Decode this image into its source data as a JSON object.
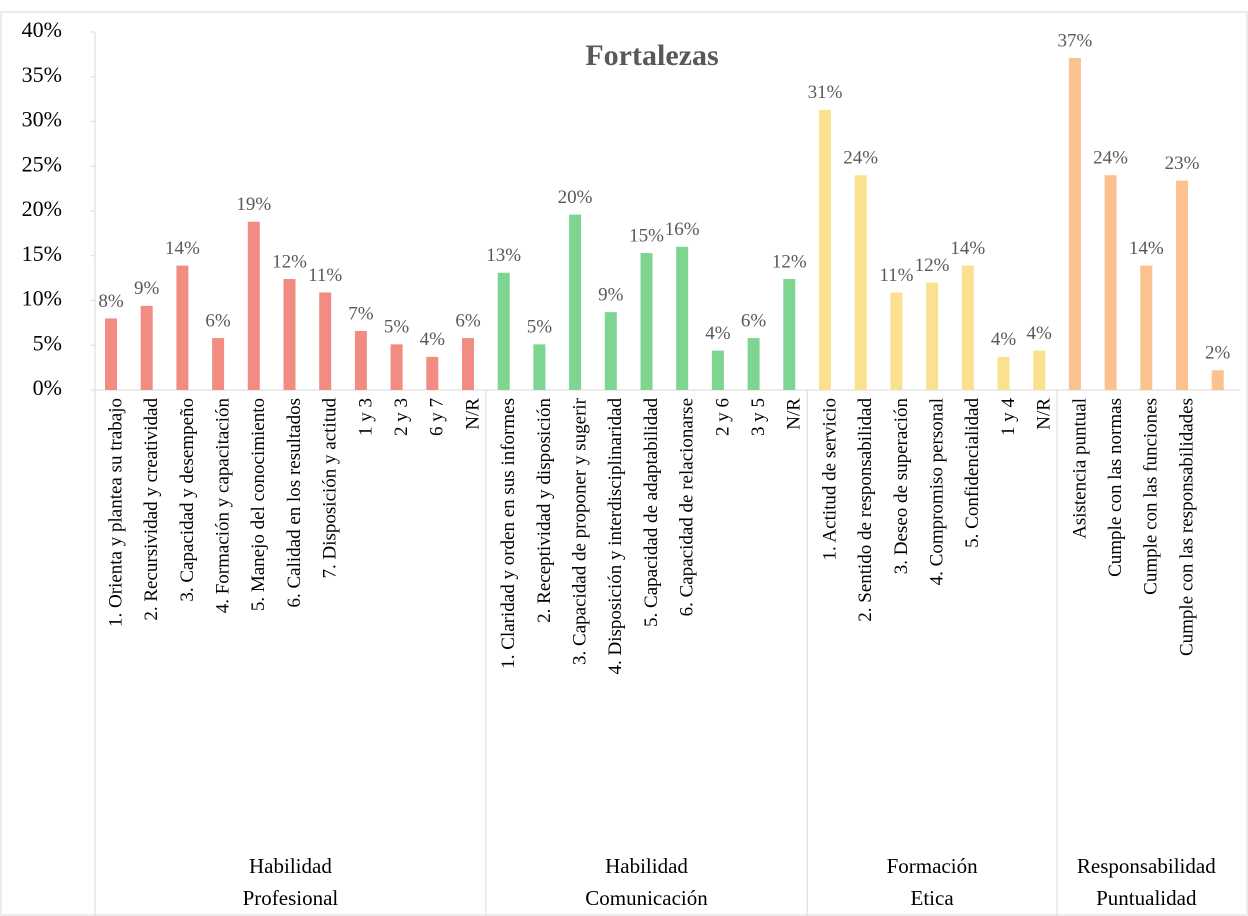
{
  "chart_data": {
    "type": "bar",
    "title": "Fortalezas",
    "ylim": [
      0,
      40
    ],
    "yticks": [
      {
        "value": 0,
        "label": "0%"
      },
      {
        "value": 5,
        "label": "5%"
      },
      {
        "value": 10,
        "label": "10%"
      },
      {
        "value": 15,
        "label": "15%"
      },
      {
        "value": 20,
        "label": "20%"
      },
      {
        "value": 25,
        "label": "25%"
      },
      {
        "value": 30,
        "label": "30%"
      },
      {
        "value": 35,
        "label": "35%"
      },
      {
        "value": 40,
        "label": "40%"
      }
    ],
    "groups": [
      {
        "label_lines": [
          "Habilidad",
          "Profesional"
        ],
        "color": "#f28b82",
        "categories": [
          "1. Orienta y plantea su trabajo",
          "2. Recursividad y creatividad",
          "3. Capacidad y desempeño",
          "4. Formación y capacitación",
          "5. Manejo del conocimiento",
          "6. Calidad en los resultados",
          "7. Disposición y actitud",
          "1 y 3",
          "2 y 3",
          "6 y 7",
          "N/R"
        ],
        "values": [
          8.0,
          9.4,
          13.9,
          5.8,
          18.8,
          12.4,
          10.9,
          6.6,
          5.1,
          3.7,
          5.8
        ],
        "value_labels": [
          "8%",
          "9%",
          "14%",
          "6%",
          "19%",
          "12%",
          "11%",
          "7%",
          "5%",
          "4%",
          "6%"
        ]
      },
      {
        "label_lines": [
          "Habilidad",
          "Comunicación"
        ],
        "color": "#7ed491",
        "categories": [
          "1. Claridad y orden en sus informes",
          "2. Receptividad y disposición",
          "3. Capacidad de proponer y sugerir",
          "4. Disposición y interdisciplinaridad",
          "5. Capacidad de adaptabilidad",
          "6. Capacidad de relacionarse",
          "2 y 6",
          "3 y 5",
          "N/R"
        ],
        "values": [
          13.1,
          5.1,
          19.6,
          8.7,
          15.3,
          16.0,
          4.4,
          5.8,
          12.4
        ],
        "value_labels": [
          "13%",
          "5%",
          "20%",
          "9%",
          "15%",
          "16%",
          "4%",
          "6%",
          "12%"
        ]
      },
      {
        "label_lines": [
          "Formación",
          "Etica"
        ],
        "color": "#fbe18f",
        "categories": [
          "1. Actitud de servicio",
          "2. Sentido de responsabilidad",
          "3. Deseo de superación",
          "4. Compromiso personal",
          "5. Confidencialidad",
          "1 y 4",
          "N/R"
        ],
        "values": [
          31.3,
          24.0,
          10.9,
          12.0,
          13.9,
          3.7,
          4.4
        ],
        "value_labels": [
          "31%",
          "24%",
          "11%",
          "12%",
          "14%",
          "4%",
          "4%"
        ]
      },
      {
        "label_lines": [
          "Responsabilidad",
          "Puntualidad"
        ],
        "color": "#fbc18f",
        "categories": [
          "Asistencia puntual",
          "Cumple con las normas",
          "Cumple con las funciones",
          "Cumple con las responsabilidades",
          null
        ],
        "values": [
          37.1,
          24.0,
          13.9,
          23.4,
          2.2
        ],
        "value_labels": [
          "37%",
          "24%",
          "14%",
          "23%",
          "2%"
        ]
      }
    ]
  }
}
